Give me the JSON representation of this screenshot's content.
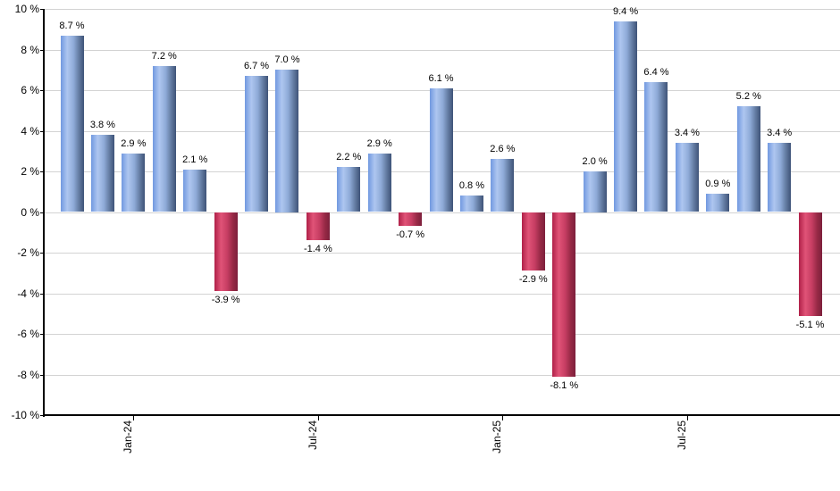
{
  "chart_data": {
    "type": "bar",
    "title": "",
    "xlabel": "",
    "ylabel": "",
    "grid": true,
    "legend": false,
    "y_axis": {
      "min": -10,
      "max": 10,
      "step": 2,
      "unit": "%"
    },
    "y_ticks": [
      {
        "label": "10 %",
        "value": 10
      },
      {
        "label": "8 %",
        "value": 8
      },
      {
        "label": "6 %",
        "value": 6
      },
      {
        "label": "4 %",
        "value": 4
      },
      {
        "label": "2 %",
        "value": 2
      },
      {
        "label": "0 %",
        "value": 0
      },
      {
        "label": "-2 %",
        "value": -2
      },
      {
        "label": "-4 %",
        "value": -4
      },
      {
        "label": "-6 %",
        "value": -6
      },
      {
        "label": "-8 %",
        "value": -8
      },
      {
        "label": "-10 %",
        "value": -10
      }
    ],
    "x_ticks": [
      {
        "label": "Jan-24",
        "bar_index": 2
      },
      {
        "label": "Jul-24",
        "bar_index": 8
      },
      {
        "label": "Jan-25",
        "bar_index": 14
      },
      {
        "label": "Jul-25",
        "bar_index": 20
      }
    ],
    "values": [
      8.7,
      3.8,
      2.9,
      7.2,
      2.1,
      -3.9,
      6.7,
      7.0,
      -1.4,
      2.2,
      2.9,
      -0.7,
      6.1,
      0.8,
      2.6,
      -2.9,
      -8.1,
      2.0,
      9.4,
      6.4,
      3.4,
      0.9,
      5.2,
      3.4,
      -5.1
    ],
    "value_labels": [
      "8.7 %",
      "3.8 %",
      "2.9 %",
      "7.2 %",
      "2.1 %",
      "-3.9 %",
      "6.7 %",
      "7.0 %",
      "-1.4 %",
      "2.2 %",
      "2.9 %",
      "-0.7 %",
      "6.1 %",
      "0.8 %",
      "2.6 %",
      "-2.9 %",
      "-8.1 %",
      "2.0 %",
      "9.4 %",
      "6.4 %",
      "3.4 %",
      "0.9 %",
      "5.2 %",
      "3.4 %",
      "-5.1 %"
    ],
    "colors": {
      "positive_gradient": [
        "#7199e0",
        "#aec6f0",
        "#8fabd8",
        "#61799f",
        "#3e5378"
      ],
      "negative_gradient": [
        "#b02048",
        "#e05377",
        "#c73e63",
        "#962945",
        "#7d1f3c"
      ],
      "grid": "#d3d3d3",
      "axis": "#000000",
      "text": "#000000"
    }
  }
}
